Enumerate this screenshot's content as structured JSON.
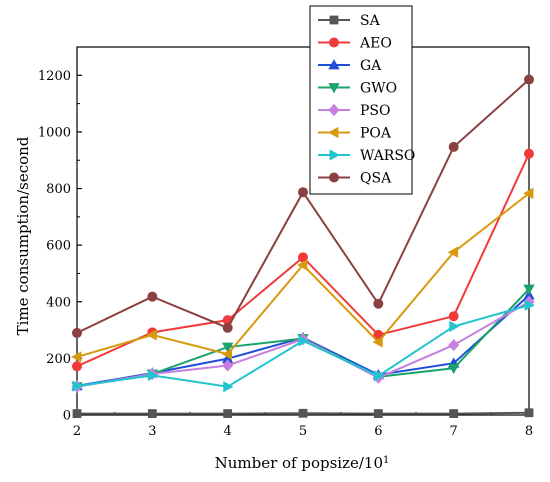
{
  "chart_data": {
    "type": "line",
    "title": "",
    "xlabel": "Number of popsize/10",
    "xlabel_superscript": "1",
    "ylabel": "Time consumption/second",
    "x": [
      2,
      3,
      4,
      5,
      6,
      7,
      8
    ],
    "xlim": [
      2,
      8
    ],
    "ylim": [
      0,
      1300
    ],
    "xticks": [
      "2",
      "3",
      "4",
      "5",
      "6",
      "7",
      "8"
    ],
    "yticks": [
      "0",
      "200",
      "400",
      "600",
      "800",
      "1000",
      "1200"
    ],
    "grid": false,
    "legend_position": "top-right",
    "series": [
      {
        "name": "SA",
        "color": "#555555",
        "marker": "square",
        "values": [
          5,
          5,
          5,
          6,
          5,
          5,
          8
        ]
      },
      {
        "name": "AEO",
        "color": "#f03a3a",
        "marker": "circle",
        "values": [
          172,
          292,
          335,
          557,
          283,
          349,
          923
        ]
      },
      {
        "name": "GA",
        "color": "#1f4fd8",
        "marker": "triangle-up",
        "values": [
          103,
          148,
          199,
          273,
          142,
          183,
          423
        ]
      },
      {
        "name": "GWO",
        "color": "#1aa36b",
        "marker": "triangle-down",
        "values": [
          100,
          145,
          240,
          270,
          135,
          165,
          445
        ]
      },
      {
        "name": "PSO",
        "color": "#c77fe0",
        "marker": "diamond",
        "values": [
          100,
          145,
          175,
          268,
          132,
          247,
          400
        ]
      },
      {
        "name": "POA",
        "color": "#d79a0c",
        "marker": "triangle-left",
        "values": [
          205,
          283,
          215,
          530,
          258,
          575,
          783
        ]
      },
      {
        "name": "WARSO",
        "color": "#22c5cf",
        "marker": "triangle-right",
        "values": [
          102,
          140,
          100,
          262,
          138,
          313,
          388
        ]
      },
      {
        "name": "QSA",
        "color": "#8b4141",
        "marker": "circle",
        "values": [
          290,
          418,
          308,
          787,
          393,
          947,
          1185
        ]
      }
    ]
  }
}
